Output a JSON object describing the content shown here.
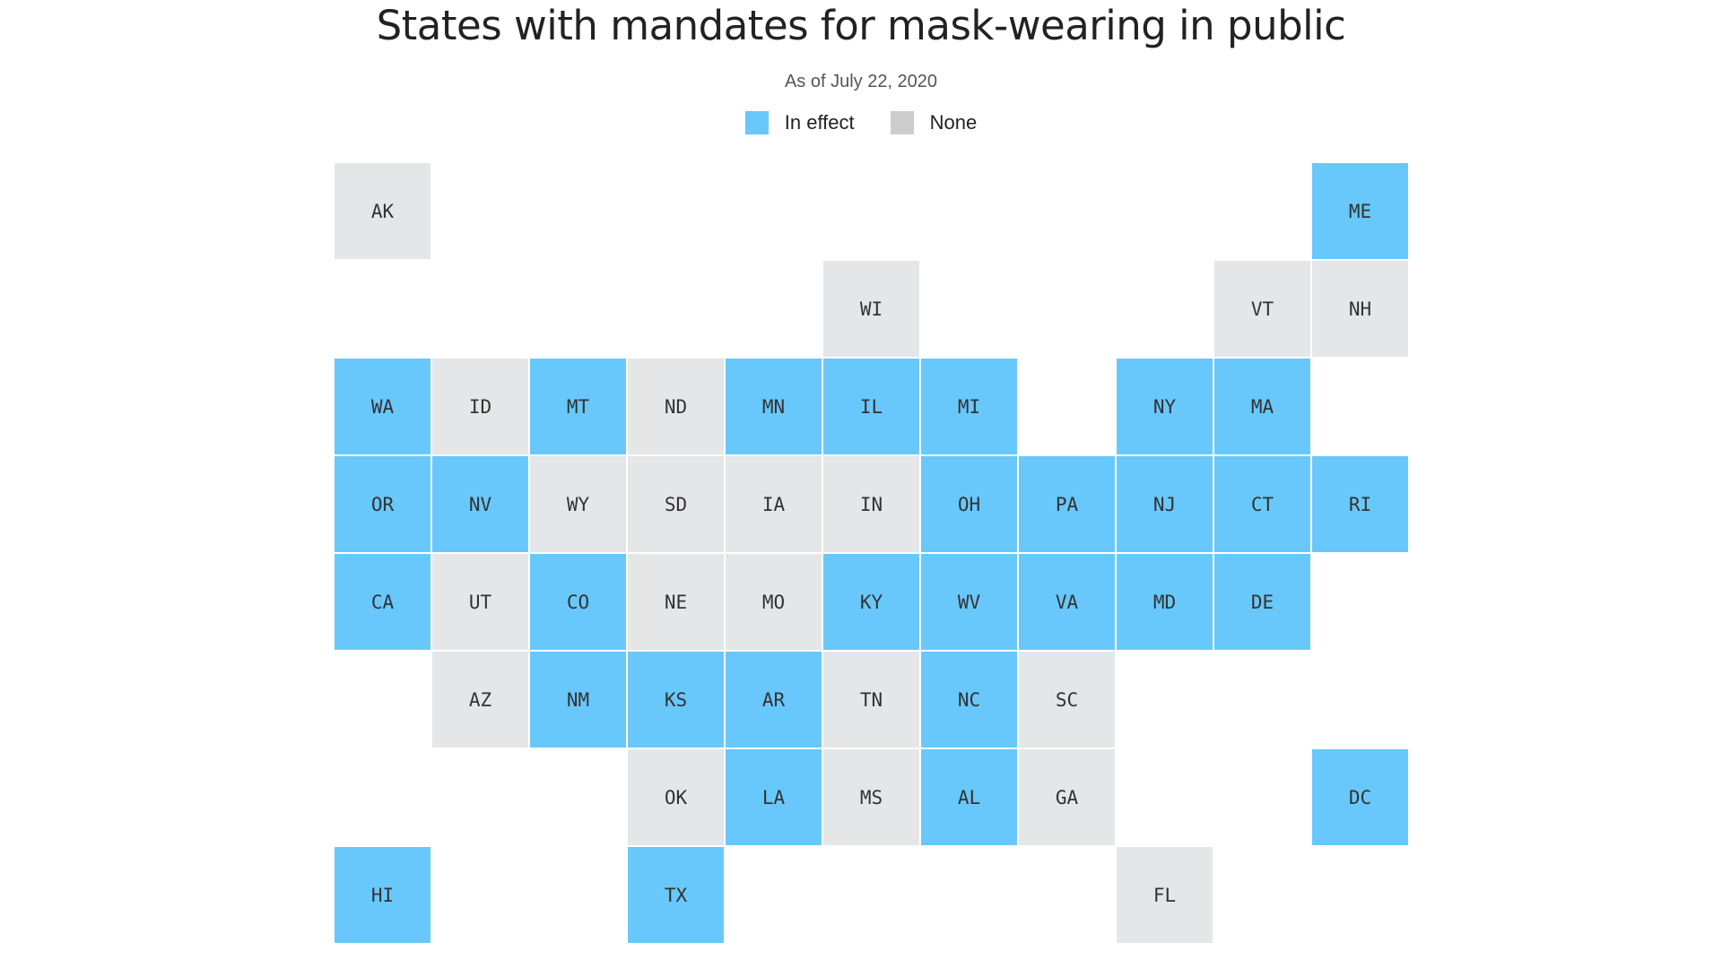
{
  "title": "States with mandates for mask-wearing in public",
  "subtitle": "As of July 22, 2020",
  "colors": {
    "in_effect": "#68c8fb",
    "none": "#e5e6e8"
  },
  "legend": {
    "in_effect_label": "In effect",
    "none_label": "None",
    "none_swatch": "#cccccc"
  },
  "tiles": [
    {
      "state": "AK",
      "row": 0,
      "col": 0,
      "status": "none"
    },
    {
      "state": "ME",
      "row": 0,
      "col": 10,
      "status": "in_effect"
    },
    {
      "state": "WI",
      "row": 1,
      "col": 5,
      "status": "none"
    },
    {
      "state": "VT",
      "row": 1,
      "col": 9,
      "status": "none"
    },
    {
      "state": "NH",
      "row": 1,
      "col": 10,
      "status": "none"
    },
    {
      "state": "WA",
      "row": 2,
      "col": 0,
      "status": "in_effect"
    },
    {
      "state": "ID",
      "row": 2,
      "col": 1,
      "status": "none"
    },
    {
      "state": "MT",
      "row": 2,
      "col": 2,
      "status": "in_effect"
    },
    {
      "state": "ND",
      "row": 2,
      "col": 3,
      "status": "none"
    },
    {
      "state": "MN",
      "row": 2,
      "col": 4,
      "status": "in_effect"
    },
    {
      "state": "IL",
      "row": 2,
      "col": 5,
      "status": "in_effect"
    },
    {
      "state": "MI",
      "row": 2,
      "col": 6,
      "status": "in_effect"
    },
    {
      "state": "NY",
      "row": 2,
      "col": 8,
      "status": "in_effect"
    },
    {
      "state": "MA",
      "row": 2,
      "col": 9,
      "status": "in_effect"
    },
    {
      "state": "OR",
      "row": 3,
      "col": 0,
      "status": "in_effect"
    },
    {
      "state": "NV",
      "row": 3,
      "col": 1,
      "status": "in_effect"
    },
    {
      "state": "WY",
      "row": 3,
      "col": 2,
      "status": "none"
    },
    {
      "state": "SD",
      "row": 3,
      "col": 3,
      "status": "none"
    },
    {
      "state": "IA",
      "row": 3,
      "col": 4,
      "status": "none"
    },
    {
      "state": "IN",
      "row": 3,
      "col": 5,
      "status": "none"
    },
    {
      "state": "OH",
      "row": 3,
      "col": 6,
      "status": "in_effect"
    },
    {
      "state": "PA",
      "row": 3,
      "col": 7,
      "status": "in_effect"
    },
    {
      "state": "NJ",
      "row": 3,
      "col": 8,
      "status": "in_effect"
    },
    {
      "state": "CT",
      "row": 3,
      "col": 9,
      "status": "in_effect"
    },
    {
      "state": "RI",
      "row": 3,
      "col": 10,
      "status": "in_effect"
    },
    {
      "state": "CA",
      "row": 4,
      "col": 0,
      "status": "in_effect"
    },
    {
      "state": "UT",
      "row": 4,
      "col": 1,
      "status": "none"
    },
    {
      "state": "CO",
      "row": 4,
      "col": 2,
      "status": "in_effect"
    },
    {
      "state": "NE",
      "row": 4,
      "col": 3,
      "status": "none"
    },
    {
      "state": "MO",
      "row": 4,
      "col": 4,
      "status": "none"
    },
    {
      "state": "KY",
      "row": 4,
      "col": 5,
      "status": "in_effect"
    },
    {
      "state": "WV",
      "row": 4,
      "col": 6,
      "status": "in_effect"
    },
    {
      "state": "VA",
      "row": 4,
      "col": 7,
      "status": "in_effect"
    },
    {
      "state": "MD",
      "row": 4,
      "col": 8,
      "status": "in_effect"
    },
    {
      "state": "DE",
      "row": 4,
      "col": 9,
      "status": "in_effect"
    },
    {
      "state": "AZ",
      "row": 5,
      "col": 1,
      "status": "none"
    },
    {
      "state": "NM",
      "row": 5,
      "col": 2,
      "status": "in_effect"
    },
    {
      "state": "KS",
      "row": 5,
      "col": 3,
      "status": "in_effect"
    },
    {
      "state": "AR",
      "row": 5,
      "col": 4,
      "status": "in_effect"
    },
    {
      "state": "TN",
      "row": 5,
      "col": 5,
      "status": "none"
    },
    {
      "state": "NC",
      "row": 5,
      "col": 6,
      "status": "in_effect"
    },
    {
      "state": "SC",
      "row": 5,
      "col": 7,
      "status": "none"
    },
    {
      "state": "OK",
      "row": 6,
      "col": 3,
      "status": "none"
    },
    {
      "state": "LA",
      "row": 6,
      "col": 4,
      "status": "in_effect"
    },
    {
      "state": "MS",
      "row": 6,
      "col": 5,
      "status": "none"
    },
    {
      "state": "AL",
      "row": 6,
      "col": 6,
      "status": "in_effect"
    },
    {
      "state": "GA",
      "row": 6,
      "col": 7,
      "status": "none"
    },
    {
      "state": "DC",
      "row": 6,
      "col": 10,
      "status": "in_effect"
    },
    {
      "state": "HI",
      "row": 7,
      "col": 0,
      "status": "in_effect"
    },
    {
      "state": "TX",
      "row": 7,
      "col": 3,
      "status": "in_effect"
    },
    {
      "state": "FL",
      "row": 7,
      "col": 8,
      "status": "none"
    }
  ]
}
